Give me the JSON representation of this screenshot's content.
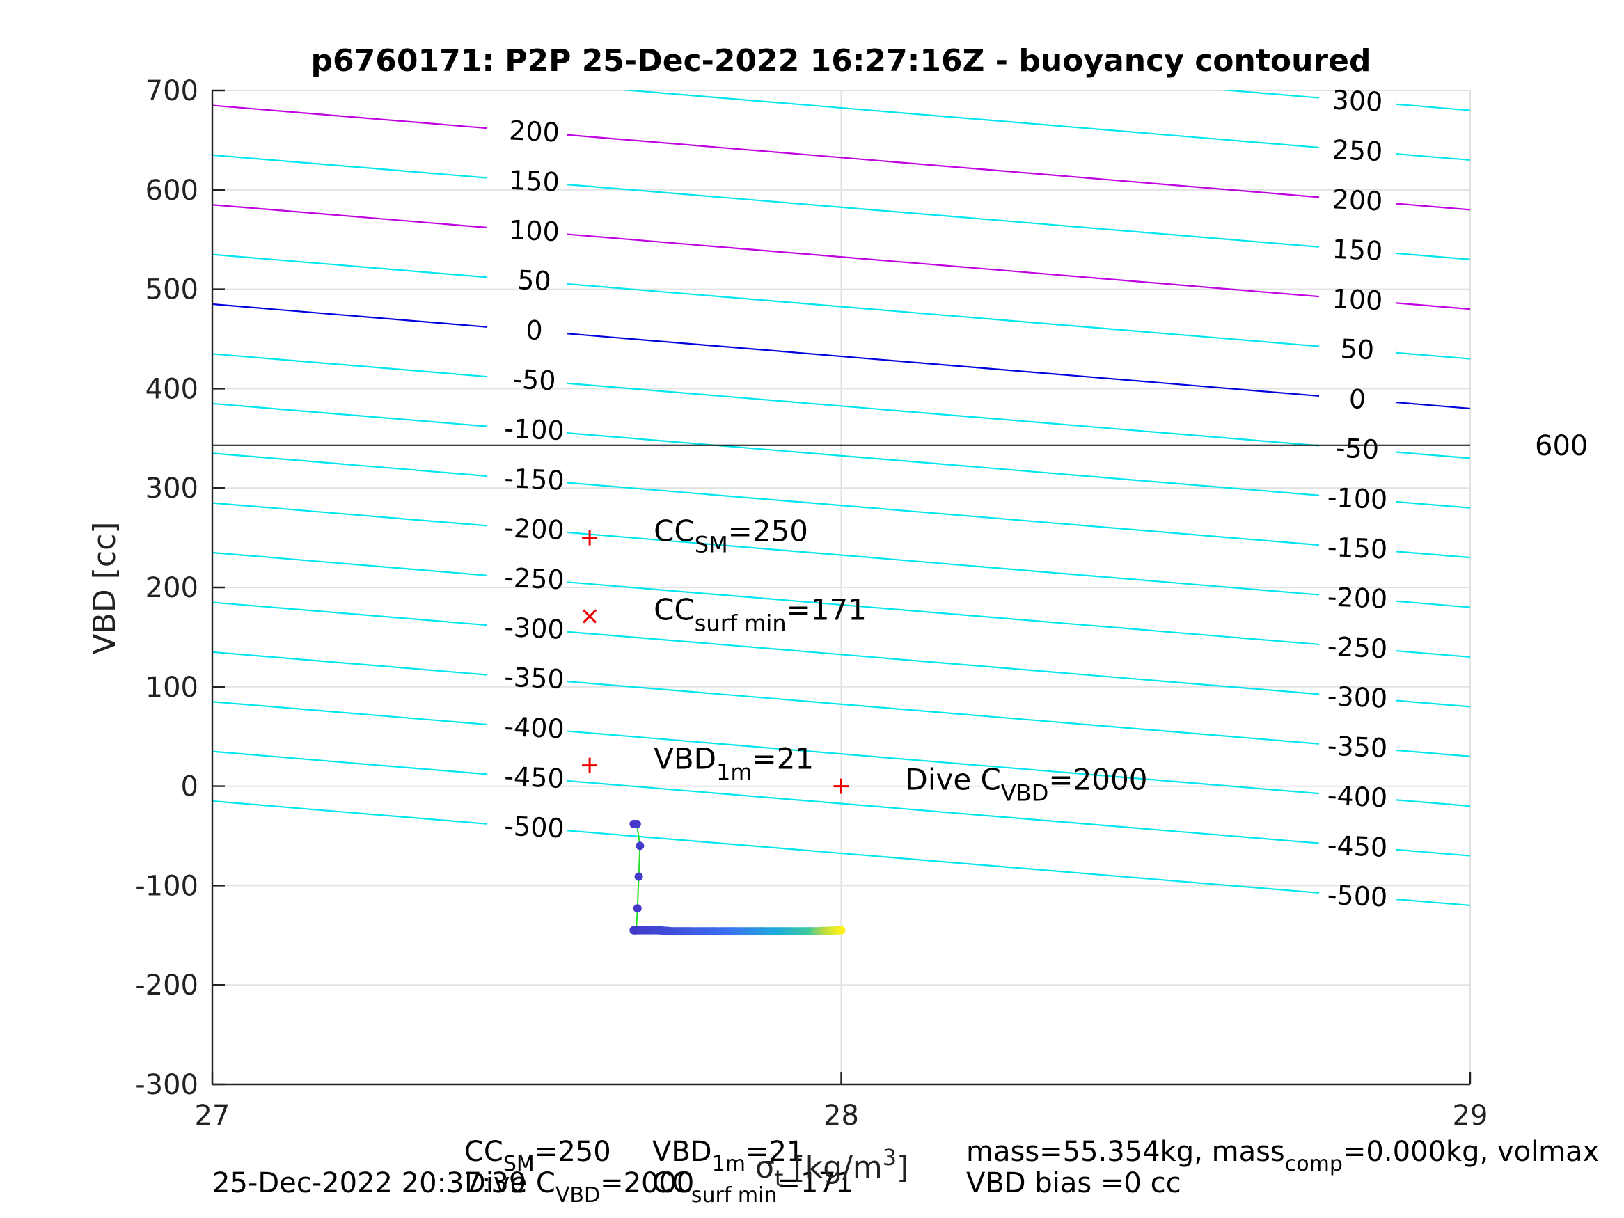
{
  "chart_data": {
    "type": "line",
    "title": "p6760171: P2P 25-Dec-2022 16:27:16Z - buoyancy contoured",
    "ylabel": "VBD [cc]",
    "xlim": [
      27,
      29
    ],
    "ylim": [
      -300,
      700
    ],
    "xticks": [
      27,
      28,
      29
    ],
    "yticks": [
      -300,
      -200,
      -100,
      0,
      100,
      200,
      300,
      400,
      500,
      600,
      700
    ],
    "grid": true,
    "contours": [
      {
        "level_left": "",
        "level_right": "300",
        "y_at_27": 785,
        "y_at_29": 680,
        "color": "#00e5ee"
      },
      {
        "level_left": "",
        "level_right": "250",
        "y_at_27": 735,
        "y_at_29": 630,
        "color": "#00e5ee"
      },
      {
        "level_left": "200",
        "level_right": "200",
        "y_at_27": 685,
        "y_at_29": 580,
        "color": "#c000e0"
      },
      {
        "level_left": "150",
        "level_right": "150",
        "y_at_27": 635,
        "y_at_29": 530,
        "color": "#00e5ee"
      },
      {
        "level_left": "100",
        "level_right": "100",
        "y_at_27": 585,
        "y_at_29": 480,
        "color": "#c000e0"
      },
      {
        "level_left": "50",
        "level_right": "50",
        "y_at_27": 535,
        "y_at_29": 430,
        "color": "#00e5ee"
      },
      {
        "level_left": "0",
        "level_right": "0",
        "y_at_27": 485,
        "y_at_29": 380,
        "color": "#0000dd"
      },
      {
        "level_left": "-50",
        "level_right": "-50",
        "y_at_27": 435,
        "y_at_29": 330,
        "color": "#00e5ee"
      },
      {
        "level_left": "-100",
        "level_right": "-100",
        "y_at_27": 385,
        "y_at_29": 280,
        "color": "#00e5ee"
      },
      {
        "level_left": "-150",
        "level_right": "-150",
        "y_at_27": 335,
        "y_at_29": 230,
        "color": "#00e5ee"
      },
      {
        "level_left": "-200",
        "level_right": "-200",
        "y_at_27": 285,
        "y_at_29": 180,
        "color": "#00e5ee"
      },
      {
        "level_left": "-250",
        "level_right": "-250",
        "y_at_27": 235,
        "y_at_29": 130,
        "color": "#00e5ee"
      },
      {
        "level_left": "-300",
        "level_right": "-300",
        "y_at_27": 185,
        "y_at_29": 80,
        "color": "#00e5ee"
      },
      {
        "level_left": "-350",
        "level_right": "-350",
        "y_at_27": 135,
        "y_at_29": 30,
        "color": "#00e5ee"
      },
      {
        "level_left": "-400",
        "level_right": "-400",
        "y_at_27": 85,
        "y_at_29": -20,
        "color": "#00e5ee"
      },
      {
        "level_left": "-450",
        "level_right": "-450",
        "y_at_27": 35,
        "y_at_29": -70,
        "color": "#00e5ee"
      },
      {
        "level_left": "-500",
        "level_right": "-500",
        "y_at_27": -15,
        "y_at_29": -120,
        "color": "#00e5ee"
      }
    ],
    "hline": {
      "y": 343,
      "label": "600"
    },
    "markers": [
      {
        "x": 27.6,
        "y": 250,
        "symbol": "+",
        "label_main": "CC",
        "label_sub": "SM",
        "label_rest": "=250"
      },
      {
        "x": 27.6,
        "y": 171,
        "symbol": "x",
        "label_main": "CC",
        "label_sub": "surf min",
        "label_rest": "=171"
      },
      {
        "x": 27.6,
        "y": 21,
        "symbol": "+",
        "label_main": "VBD",
        "label_sub": "1m",
        "label_rest": "=21"
      },
      {
        "x": 28.0,
        "y": 0,
        "symbol": "+",
        "label_main": "Dive C",
        "label_sub": "VBD",
        "label_rest": "=2000"
      }
    ],
    "trajectory": {
      "x": [
        27.67,
        27.675,
        27.68,
        27.678,
        27.676,
        27.674,
        27.67,
        27.69,
        27.71,
        27.73,
        27.76,
        27.8,
        27.84,
        27.88,
        27.92,
        27.96,
        28.0
      ],
      "y": [
        -38,
        -38,
        -60,
        -91,
        -123,
        -145,
        -145,
        -145,
        -145,
        -146,
        -146,
        -146,
        -146,
        -146,
        -146,
        -146,
        -145
      ]
    }
  },
  "footer": {
    "line1_col1": "CC",
    "line1_col1_sub": "SM",
    "line1_col1_rest": "=250",
    "line1_col2": "VBD",
    "line1_col2_sub": "1m",
    "line1_col2_rest": "=21",
    "line2_col1": "Dive C",
    "line2_col1_sub": "VBD",
    "line2_col1_rest": "=2000",
    "line2_col2": "CC",
    "line2_col2_sub": "surf min",
    "line2_col2_rest": "=171",
    "xlabel_sigma": "σ",
    "xlabel_sub": "t",
    "xlabel_rest": " [kg/m",
    "xlabel_sup": "3",
    "xlabel_end": "]",
    "mass_line": "mass=55.354kg, mass",
    "mass_sub": "comp",
    "mass_rest": "=0.000kg, volmax",
    "vbd_bias": "VBD bias =0 cc",
    "timestamp": "25-Dec-2022 20:37:39"
  }
}
